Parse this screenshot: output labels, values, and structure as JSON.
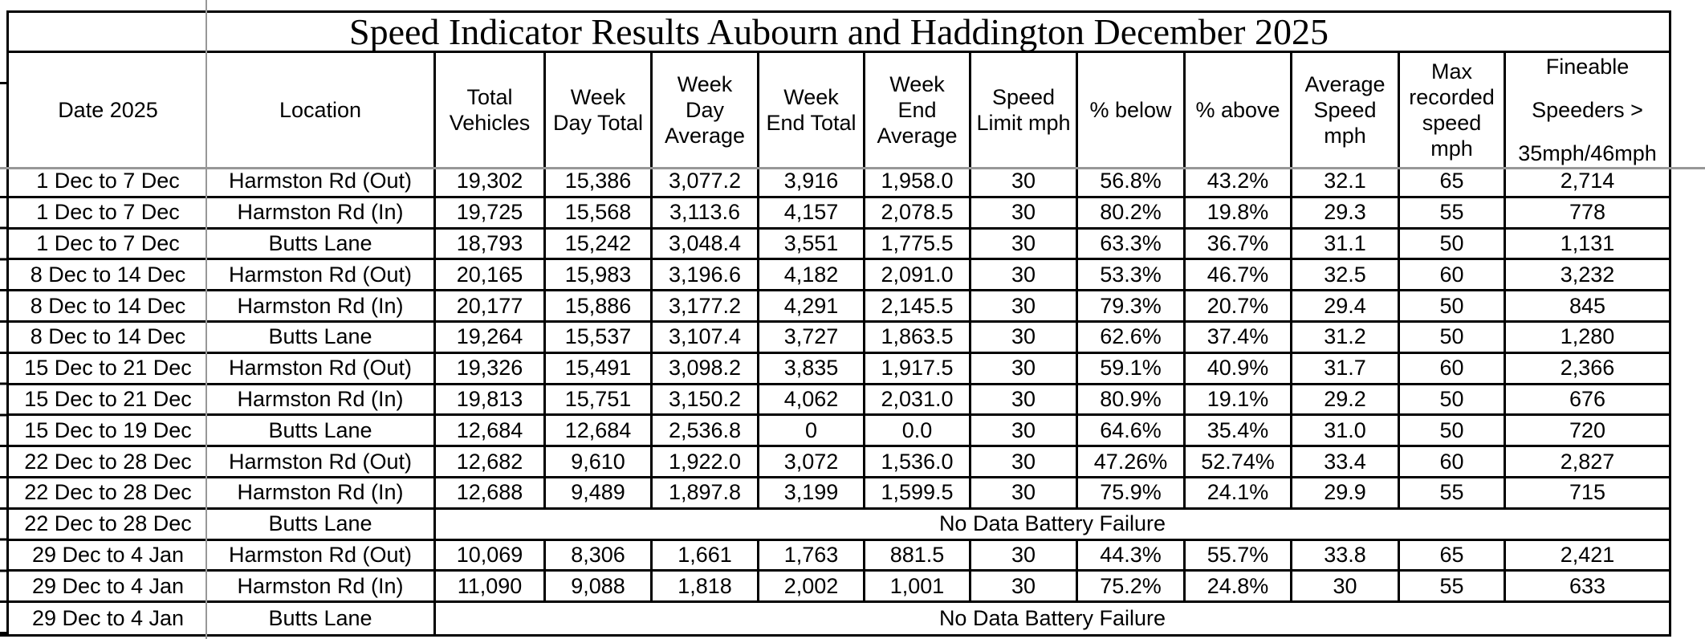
{
  "colors": {
    "table_border": "#000000",
    "pane_divider": "#979797",
    "background": "#ffffff",
    "text": "#000000"
  },
  "table": {
    "title": "Speed Indicator Results Aubourn and Haddington December 2025",
    "columns": [
      {
        "key": "date",
        "label": "Date 2025",
        "lines": [
          "Date 2025"
        ]
      },
      {
        "key": "location",
        "label": "Location",
        "lines": [
          "Location"
        ]
      },
      {
        "key": "total_vehicles",
        "label": "Total Vehicles",
        "lines": [
          "Total",
          "Vehicles"
        ]
      },
      {
        "key": "week_day_total",
        "label": "Week Day Total",
        "lines": [
          "Week",
          "Day Total"
        ]
      },
      {
        "key": "week_day_average",
        "label": "Week Day Average",
        "lines": [
          "Week",
          "Day",
          "Average"
        ]
      },
      {
        "key": "week_end_total",
        "label": "Week End Total",
        "lines": [
          "Week",
          "End Total"
        ]
      },
      {
        "key": "week_end_average",
        "label": "Week End Average",
        "lines": [
          "Week",
          "End",
          "Average"
        ]
      },
      {
        "key": "speed_limit_mph",
        "label": "Speed Limit mph",
        "lines": [
          "Speed",
          "Limit mph"
        ]
      },
      {
        "key": "pct_below",
        "label": "% below",
        "lines": [
          "% below"
        ]
      },
      {
        "key": "pct_above",
        "label": "% above",
        "lines": [
          "% above"
        ]
      },
      {
        "key": "average_speed_mph",
        "label": "Average Speed mph",
        "lines": [
          "Average",
          "Speed",
          "mph"
        ]
      },
      {
        "key": "max_recorded_speed_mph",
        "label": "Max recorded speed mph",
        "lines": [
          "Max",
          "recorded",
          "speed",
          "mph"
        ]
      },
      {
        "key": "fineable_speeders",
        "label": "Fineable Speeders > 35mph/46mph",
        "lines": [
          "Fineable",
          "Speeders >",
          "35mph/46mph"
        ],
        "tall_line_spacing": true
      }
    ],
    "rows": [
      {
        "date": "1 Dec to 7 Dec",
        "location": "Harmston Rd (Out)",
        "values": [
          "19,302",
          "15,386",
          "3,077.2",
          "3,916",
          "1,958.0",
          "30",
          "56.8%",
          "43.2%",
          "32.1",
          "65",
          "2,714"
        ]
      },
      {
        "date": "1 Dec to 7 Dec",
        "location": "Harmston Rd (In)",
        "values": [
          "19,725",
          "15,568",
          "3,113.6",
          "4,157",
          "2,078.5",
          "30",
          "80.2%",
          "19.8%",
          "29.3",
          "55",
          "778"
        ]
      },
      {
        "date": "1 Dec to 7 Dec",
        "location": "Butts Lane",
        "values": [
          "18,793",
          "15,242",
          "3,048.4",
          "3,551",
          "1,775.5",
          "30",
          "63.3%",
          "36.7%",
          "31.1",
          "50",
          "1,131"
        ]
      },
      {
        "date": "8 Dec to 14 Dec",
        "location": "Harmston Rd (Out)",
        "values": [
          "20,165",
          "15,983",
          "3,196.6",
          "4,182",
          "2,091.0",
          "30",
          "53.3%",
          "46.7%",
          "32.5",
          "60",
          "3,232"
        ]
      },
      {
        "date": "8 Dec to 14 Dec",
        "location": "Harmston Rd (In)",
        "values": [
          "20,177",
          "15,886",
          "3,177.2",
          "4,291",
          "2,145.5",
          "30",
          "79.3%",
          "20.7%",
          "29.4",
          "50",
          "845"
        ]
      },
      {
        "date": "8 Dec to 14 Dec",
        "location": "Butts Lane",
        "values": [
          "19,264",
          "15,537",
          "3,107.4",
          "3,727",
          "1,863.5",
          "30",
          "62.6%",
          "37.4%",
          "31.2",
          "50",
          "1,280"
        ]
      },
      {
        "date": "15 Dec to 21 Dec",
        "location": "Harmston Rd (Out)",
        "values": [
          "19,326",
          "15,491",
          "3,098.2",
          "3,835",
          "1,917.5",
          "30",
          "59.1%",
          "40.9%",
          "31.7",
          "60",
          "2,366"
        ]
      },
      {
        "date": "15 Dec to 21 Dec",
        "location": "Harmston Rd (In)",
        "values": [
          "19,813",
          "15,751",
          "3,150.2",
          "4,062",
          "2,031.0",
          "30",
          "80.9%",
          "19.1%",
          "29.2",
          "50",
          "676"
        ]
      },
      {
        "date": "15 Dec to 19 Dec",
        "location": "Butts Lane",
        "values": [
          "12,684",
          "12,684",
          "2,536.8",
          "0",
          "0.0",
          "30",
          "64.6%",
          "35.4%",
          "31.0",
          "50",
          "720"
        ]
      },
      {
        "date": "22 Dec to 28 Dec",
        "location": "Harmston Rd (Out)",
        "values": [
          "12,682",
          "9,610",
          "1,922.0",
          "3,072",
          "1,536.0",
          "30",
          "47.26%",
          "52.74%",
          "33.4",
          "60",
          "2,827"
        ]
      },
      {
        "date": "22 Dec to 28 Dec",
        "location": "Harmston Rd (In)",
        "values": [
          "12,688",
          "9,489",
          "1,897.8",
          "3,199",
          "1,599.5",
          "30",
          "75.9%",
          "24.1%",
          "29.9",
          "55",
          "715"
        ]
      },
      {
        "date": "22 Dec to 28 Dec",
        "location": "Butts Lane",
        "note": "No Data Battery Failure"
      },
      {
        "date": "29 Dec to 4 Jan",
        "location": "Harmston Rd (Out)",
        "values": [
          "10,069",
          "8,306",
          "1,661",
          "1,763",
          "881.5",
          "30",
          "44.3%",
          "55.7%",
          "33.8",
          "65",
          "2,421"
        ]
      },
      {
        "date": "29 Dec to 4 Jan",
        "location": "Harmston Rd (In)",
        "values": [
          "11,090",
          "9,088",
          "1,818",
          "2,002",
          "1,001",
          "30",
          "75.2%",
          "24.8%",
          "30",
          "55",
          "633"
        ]
      },
      {
        "date": "29 Dec to 4 Jan",
        "location": "Butts Lane",
        "note": "No Data Battery Failure"
      }
    ]
  }
}
